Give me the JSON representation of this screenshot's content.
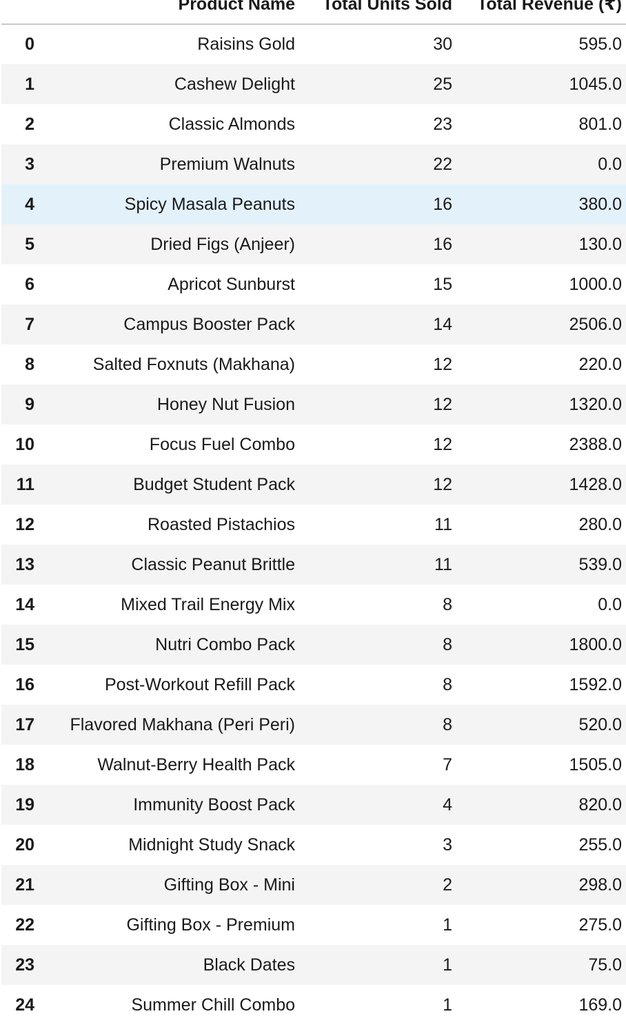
{
  "table": {
    "columns": {
      "index": "",
      "product": "Product Name",
      "units": "Total Units Sold",
      "revenue": "Total Revenue (₹)"
    },
    "highlighted_row": 4,
    "rows": [
      {
        "index": "0",
        "product": "Raisins Gold",
        "units": "30",
        "revenue": "595.0"
      },
      {
        "index": "1",
        "product": "Cashew Delight",
        "units": "25",
        "revenue": "1045.0"
      },
      {
        "index": "2",
        "product": "Classic Almonds",
        "units": "23",
        "revenue": "801.0"
      },
      {
        "index": "3",
        "product": "Premium Walnuts",
        "units": "22",
        "revenue": "0.0"
      },
      {
        "index": "4",
        "product": "Spicy Masala Peanuts",
        "units": "16",
        "revenue": "380.0"
      },
      {
        "index": "5",
        "product": "Dried Figs (Anjeer)",
        "units": "16",
        "revenue": "130.0"
      },
      {
        "index": "6",
        "product": "Apricot Sunburst",
        "units": "15",
        "revenue": "1000.0"
      },
      {
        "index": "7",
        "product": "Campus Booster Pack",
        "units": "14",
        "revenue": "2506.0"
      },
      {
        "index": "8",
        "product": "Salted Foxnuts (Makhana)",
        "units": "12",
        "revenue": "220.0"
      },
      {
        "index": "9",
        "product": "Honey Nut Fusion",
        "units": "12",
        "revenue": "1320.0"
      },
      {
        "index": "10",
        "product": "Focus Fuel Combo",
        "units": "12",
        "revenue": "2388.0"
      },
      {
        "index": "11",
        "product": "Budget Student Pack",
        "units": "12",
        "revenue": "1428.0"
      },
      {
        "index": "12",
        "product": "Roasted Pistachios",
        "units": "11",
        "revenue": "280.0"
      },
      {
        "index": "13",
        "product": "Classic Peanut Brittle",
        "units": "11",
        "revenue": "539.0"
      },
      {
        "index": "14",
        "product": "Mixed Trail Energy Mix",
        "units": "8",
        "revenue": "0.0"
      },
      {
        "index": "15",
        "product": "Nutri Combo Pack",
        "units": "8",
        "revenue": "1800.0"
      },
      {
        "index": "16",
        "product": "Post-Workout Refill Pack",
        "units": "8",
        "revenue": "1592.0"
      },
      {
        "index": "17",
        "product": "Flavored Makhana (Peri Peri)",
        "units": "8",
        "revenue": "520.0"
      },
      {
        "index": "18",
        "product": "Walnut-Berry Health Pack",
        "units": "7",
        "revenue": "1505.0"
      },
      {
        "index": "19",
        "product": "Immunity Boost Pack",
        "units": "4",
        "revenue": "820.0"
      },
      {
        "index": "20",
        "product": "Midnight Study Snack",
        "units": "3",
        "revenue": "255.0"
      },
      {
        "index": "21",
        "product": "Gifting Box - Mini",
        "units": "2",
        "revenue": "298.0"
      },
      {
        "index": "22",
        "product": "Gifting Box - Premium",
        "units": "1",
        "revenue": "275.0"
      },
      {
        "index": "23",
        "product": "Black Dates",
        "units": "1",
        "revenue": "75.0"
      },
      {
        "index": "24",
        "product": "Summer Chill Combo",
        "units": "1",
        "revenue": "169.0"
      }
    ]
  }
}
